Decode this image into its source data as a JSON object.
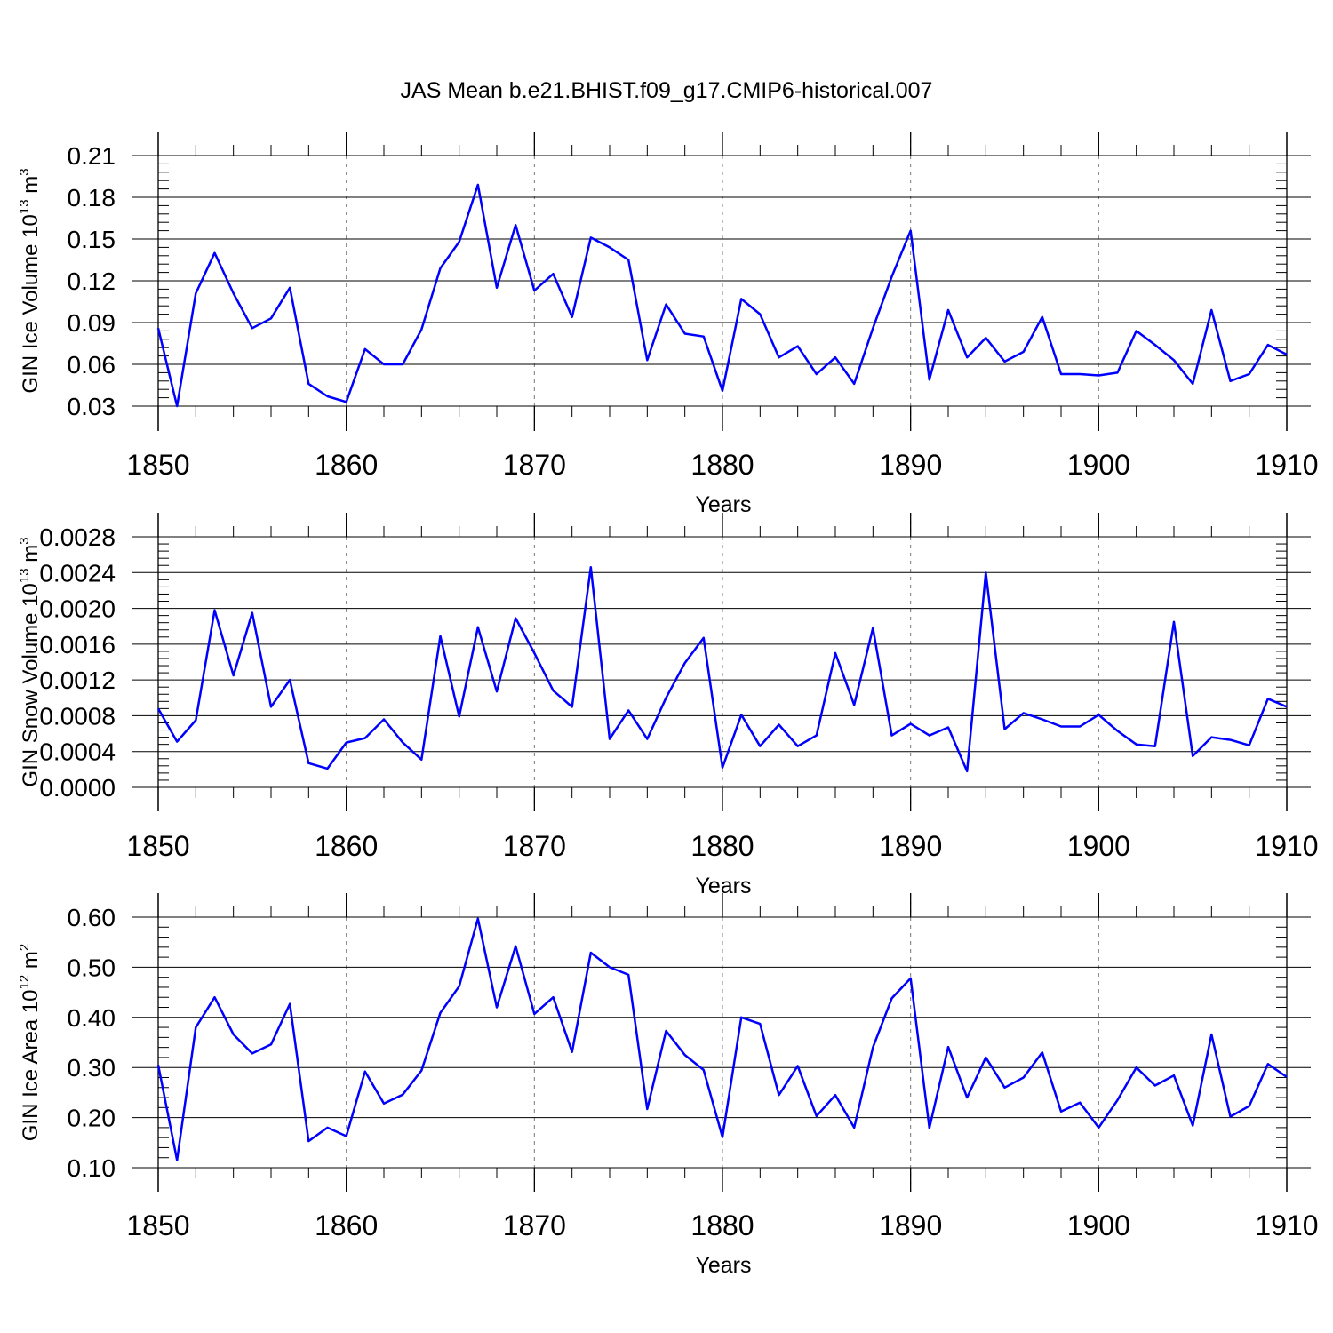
{
  "title": "JAS Mean b.e21.BHIST.f09_g17.CMIP6-historical.007",
  "colors": {
    "line": "#0000ff",
    "axis": "#000000",
    "grid": "#777777"
  },
  "chart_data": [
    {
      "type": "line",
      "ylabel_main": "GIN Ice Volume 10",
      "ylabel_exp": "13",
      "ylabel_unit": "m",
      "ylabel_unit_exp": "3",
      "xlabel": "Years",
      "xlim": [
        1850,
        1910
      ],
      "ylim": [
        0.03,
        0.21
      ],
      "yticks": [
        "0.21",
        "0.18",
        "0.15",
        "0.12",
        "0.09",
        "0.06",
        "0.03"
      ],
      "xticks": [
        "1850",
        "1860",
        "1870",
        "1880",
        "1890",
        "1900",
        "1910"
      ],
      "grid": "x dashed at decades",
      "x_start": 1850,
      "values": [
        0.086,
        0.03,
        0.111,
        0.14,
        0.111,
        0.086,
        0.093,
        0.115,
        0.046,
        0.037,
        0.033,
        0.071,
        0.06,
        0.06,
        0.085,
        0.129,
        0.148,
        0.189,
        0.115,
        0.16,
        0.113,
        0.125,
        0.094,
        0.151,
        0.144,
        0.135,
        0.063,
        0.103,
        0.082,
        0.08,
        0.041,
        0.107,
        0.096,
        0.065,
        0.073,
        0.053,
        0.065,
        0.046,
        0.086,
        0.123,
        0.156,
        0.049,
        0.099,
        0.065,
        0.079,
        0.062,
        0.069,
        0.094,
        0.053,
        0.053,
        0.052,
        0.054,
        0.084,
        0.074,
        0.063,
        0.046,
        0.099,
        0.048,
        0.053,
        0.074,
        0.067
      ]
    },
    {
      "type": "line",
      "ylabel_main": "GIN Snow Volume 10",
      "ylabel_exp": "13",
      "ylabel_unit": "m",
      "ylabel_unit_exp": "3",
      "xlabel": "Years",
      "xlim": [
        1850,
        1910
      ],
      "ylim": [
        0.0,
        0.0028
      ],
      "yticks": [
        "0.0028",
        "0.0024",
        "0.0020",
        "0.0016",
        "0.0012",
        "0.0008",
        "0.0004",
        "0.0000"
      ],
      "xticks": [
        "1850",
        "1860",
        "1870",
        "1880",
        "1890",
        "1900",
        "1910"
      ],
      "grid": "x dashed at decades",
      "x_start": 1850,
      "values": [
        0.00088,
        0.00051,
        0.00075,
        0.00198,
        0.00125,
        0.00195,
        0.0009,
        0.0012,
        0.00027,
        0.00021,
        0.0005,
        0.00055,
        0.00076,
        0.0005,
        0.00031,
        0.00169,
        0.00079,
        0.00179,
        0.00107,
        0.00189,
        0.0015,
        0.00108,
        0.0009,
        0.00246,
        0.00054,
        0.00086,
        0.00054,
        0.001,
        0.00139,
        0.00167,
        0.00022,
        0.00081,
        0.00046,
        0.0007,
        0.00046,
        0.00058,
        0.0015,
        0.00092,
        0.00178,
        0.00058,
        0.00071,
        0.00058,
        0.00067,
        0.00018,
        0.0024,
        0.00065,
        0.00083,
        0.00076,
        0.00068,
        0.00068,
        0.00081,
        0.00063,
        0.00048,
        0.00046,
        0.00185,
        0.00035,
        0.00056,
        0.00053,
        0.00047,
        0.00099,
        0.0009
      ]
    },
    {
      "type": "line",
      "ylabel_main": "GIN Ice Area 10",
      "ylabel_exp": "12",
      "ylabel_unit": "m",
      "ylabel_unit_exp": "2",
      "xlabel": "Years",
      "xlim": [
        1850,
        1910
      ],
      "ylim": [
        0.1,
        0.6
      ],
      "yticks": [
        "0.60",
        "0.50",
        "0.40",
        "0.30",
        "0.20",
        "0.10"
      ],
      "xticks": [
        "1850",
        "1860",
        "1870",
        "1880",
        "1890",
        "1900",
        "1910"
      ],
      "grid": "x dashed at decades",
      "x_start": 1850,
      "values": [
        0.305,
        0.115,
        0.38,
        0.44,
        0.366,
        0.328,
        0.346,
        0.427,
        0.153,
        0.18,
        0.163,
        0.292,
        0.228,
        0.246,
        0.294,
        0.409,
        0.462,
        0.597,
        0.42,
        0.542,
        0.407,
        0.44,
        0.331,
        0.529,
        0.5,
        0.485,
        0.217,
        0.373,
        0.325,
        0.295,
        0.161,
        0.4,
        0.387,
        0.245,
        0.303,
        0.203,
        0.245,
        0.18,
        0.34,
        0.438,
        0.478,
        0.179,
        0.341,
        0.24,
        0.32,
        0.26,
        0.28,
        0.33,
        0.212,
        0.23,
        0.18,
        0.235,
        0.3,
        0.264,
        0.284,
        0.184,
        0.366,
        0.202,
        0.223,
        0.307,
        0.281
      ]
    }
  ]
}
